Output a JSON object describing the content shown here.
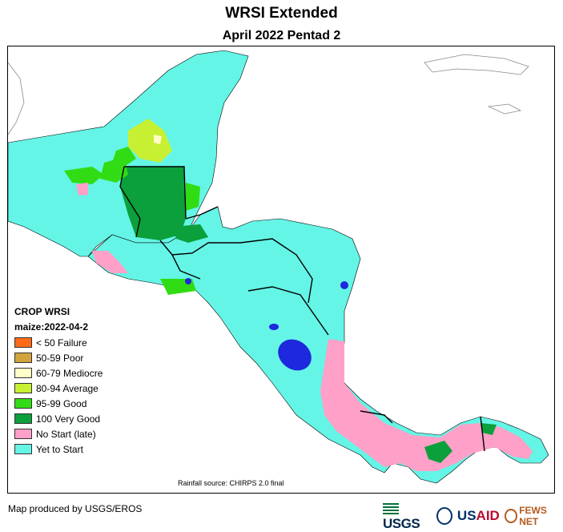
{
  "header": {
    "title": "WRSI Extended",
    "subtitle": "April 2022 Pentad 2"
  },
  "legend": {
    "heading": "CROP WRSI",
    "crop_date": "maize:2022-04-2",
    "items": [
      {
        "label": "< 50  Failure",
        "color": "#ff6a1a"
      },
      {
        "label": "50-59 Poor",
        "color": "#d4a43c"
      },
      {
        "label": "60-79 Mediocre",
        "color": "#ffffc8"
      },
      {
        "label": "80-94 Average",
        "color": "#c8f032"
      },
      {
        "label": "95-99 Good",
        "color": "#32dc14"
      },
      {
        "label": "100 Very Good",
        "color": "#0ca03c"
      },
      {
        "label": "No Start (late)",
        "color": "#ffa0c8"
      },
      {
        "label": "Yet to Start",
        "color": "#64f5e6"
      }
    ]
  },
  "map": {
    "rainfall_source": "Rainfall source: CHIRPS 2.0 final",
    "water_color": "#1e28dc",
    "border_color": "#000000"
  },
  "footer": {
    "credit": "Map produced by USGS/EROS",
    "logos": {
      "usgs": "USGS",
      "usaid_a": "US",
      "usaid_b": "AID",
      "fews": "FEWS NET"
    }
  }
}
